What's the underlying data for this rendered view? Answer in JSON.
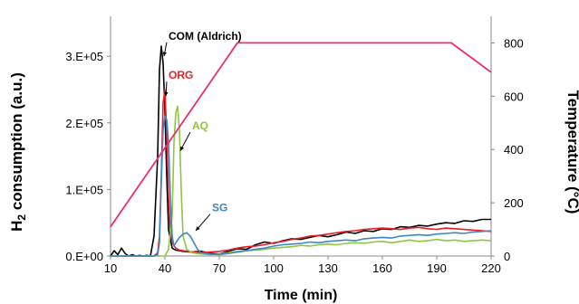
{
  "chart_data": {
    "type": "line",
    "xlabel": "Time (min)",
    "ylabel_main": "H",
    "ylabel_sub": "2",
    "ylabel_rest": " consumption (a.u.)",
    "y2label": "Temperature (°C)",
    "xlim": [
      10,
      220
    ],
    "ylim": [
      0,
      360000
    ],
    "y2lim": [
      0,
      900
    ],
    "x_ticks": [
      10,
      40,
      70,
      100,
      130,
      160,
      190,
      220
    ],
    "x_tick_labels": [
      "10",
      "40",
      "70",
      "100",
      "130",
      "160",
      "190",
      "220"
    ],
    "y_ticks": [
      0,
      100000,
      200000,
      300000
    ],
    "y_tick_labels": [
      "0.E+00",
      "1.E+05",
      "2.E+05",
      "3.E+05"
    ],
    "y2_ticks": [
      0,
      200,
      400,
      600,
      800
    ],
    "y2_tick_labels": [
      "0",
      "200",
      "400",
      "600",
      "800"
    ],
    "grid": false,
    "series": [
      {
        "name": "COM (Aldrich)",
        "axis": "left",
        "color": "#000000",
        "x": [
          10,
          12,
          14,
          16,
          18,
          20,
          22,
          24,
          26,
          28,
          30,
          32,
          34,
          36,
          37,
          38,
          39,
          40,
          41,
          42,
          44,
          46,
          48,
          50,
          55,
          60,
          65,
          70,
          75,
          80,
          85,
          90,
          95,
          100,
          105,
          110,
          115,
          120,
          125,
          130,
          135,
          140,
          145,
          150,
          155,
          160,
          165,
          170,
          175,
          180,
          185,
          190,
          195,
          200,
          205,
          210,
          215,
          220
        ],
        "y": [
          0,
          8000,
          2000,
          12000,
          4000,
          0,
          2000,
          0,
          1000,
          0,
          1000,
          0,
          30000,
          150000,
          280000,
          315000,
          290000,
          220000,
          120000,
          40000,
          12000,
          9000,
          8000,
          7000,
          6000,
          7000,
          4000,
          3000,
          7000,
          11000,
          10000,
          17000,
          21000,
          19000,
          23000,
          26000,
          25000,
          28000,
          31000,
          29000,
          32000,
          36000,
          34000,
          38000,
          37000,
          41000,
          40000,
          44000,
          43000,
          46000,
          45000,
          48000,
          50000,
          49000,
          53000,
          52000,
          55000,
          55000
        ]
      },
      {
        "name": "ORG",
        "axis": "left",
        "color": "#ee1c25",
        "x": [
          10,
          30,
          34,
          36,
          37,
          38,
          39,
          40,
          41,
          42,
          43,
          44,
          46,
          48,
          50,
          55,
          60,
          65,
          70,
          75,
          80,
          85,
          90,
          95,
          100,
          105,
          110,
          115,
          120,
          125,
          130,
          135,
          140,
          145,
          150,
          155,
          160,
          165,
          170,
          175,
          180,
          185,
          190,
          195,
          200,
          205,
          210,
          215,
          220
        ],
        "y": [
          0,
          0,
          0,
          5000,
          30000,
          120000,
          230000,
          250000,
          180000,
          90000,
          40000,
          20000,
          12000,
          9000,
          8000,
          6000,
          5000,
          6000,
          7000,
          9000,
          12000,
          14000,
          15000,
          17000,
          20000,
          22000,
          25000,
          27000,
          30000,
          31000,
          33000,
          35000,
          37000,
          38000,
          40000,
          41000,
          42000,
          41000,
          40000,
          42000,
          43000,
          41000,
          40000,
          42000,
          41000,
          40000,
          39000,
          38000,
          37000
        ]
      },
      {
        "name": "AQ",
        "axis": "left",
        "color": "#8dc63f",
        "x": [
          10,
          30,
          40,
          42,
          44,
          45,
          46,
          47,
          48,
          49,
          50,
          52,
          55,
          60,
          65,
          70,
          75,
          80,
          85,
          90,
          95,
          100,
          105,
          110,
          115,
          120,
          125,
          130,
          135,
          140,
          145,
          150,
          155,
          160,
          165,
          170,
          175,
          180,
          185,
          190,
          195,
          200,
          205,
          210,
          215,
          220
        ],
        "y": [
          0,
          0,
          0,
          10000,
          60000,
          170000,
          215000,
          225000,
          190000,
          100000,
          30000,
          10000,
          5000,
          3000,
          2000,
          3000,
          5000,
          7000,
          8000,
          9000,
          10000,
          12000,
          13000,
          14000,
          16000,
          15000,
          17000,
          18000,
          17000,
          19000,
          20000,
          19000,
          21000,
          22000,
          20000,
          22000,
          24000,
          22000,
          23000,
          25000,
          23000,
          24000,
          22000,
          23000,
          24000,
          23000
        ]
      },
      {
        "name": "SG",
        "axis": "left",
        "color": "#3a86c8",
        "x": [
          10,
          30,
          34,
          36,
          37,
          38,
          39,
          40,
          41,
          42,
          43,
          44,
          45,
          46,
          48,
          50,
          52,
          54,
          56,
          58,
          60,
          65,
          70,
          75,
          80,
          85,
          90,
          95,
          100,
          105,
          110,
          115,
          120,
          125,
          130,
          135,
          140,
          145,
          150,
          155,
          160,
          165,
          170,
          175,
          180,
          185,
          190,
          195,
          200,
          205,
          210,
          215,
          220
        ],
        "y": [
          0,
          0,
          0,
          2000,
          20000,
          110000,
          190000,
          210000,
          205000,
          170000,
          90000,
          30000,
          15000,
          20000,
          28000,
          33000,
          35000,
          30000,
          20000,
          10000,
          5000,
          3000,
          2000,
          4000,
          6000,
          8000,
          10000,
          12000,
          15000,
          17000,
          18000,
          19000,
          21000,
          20000,
          22000,
          23000,
          24000,
          23000,
          26000,
          27000,
          28000,
          27000,
          30000,
          31000,
          32000,
          31000,
          33000,
          34000,
          35000,
          34000,
          36000,
          37000,
          38000
        ]
      },
      {
        "name": "Temperature",
        "axis": "right",
        "color": "#ec2a7a",
        "x": [
          10,
          80,
          198,
          220
        ],
        "y": [
          110,
          800,
          800,
          690
        ]
      }
    ],
    "annotations": [
      {
        "text": "COM (Aldrich)",
        "color": "#000000",
        "x": 42,
        "y": 325000,
        "arrow_to_x": 39.5,
        "arrow_to_y": 300000
      },
      {
        "text": "ORG",
        "color": "#ee1c25",
        "x": 42,
        "y": 266000,
        "arrow_to_x": 40.5,
        "arrow_to_y": 240000
      },
      {
        "text": "AQ",
        "color": "#8dc63f",
        "x": 55,
        "y": 190000,
        "arrow_to_x": 48.5,
        "arrow_to_y": 158000
      },
      {
        "text": "SG",
        "color": "#3a86c8",
        "x": 66,
        "y": 67000,
        "arrow_to_x": 57,
        "arrow_to_y": 38000
      }
    ]
  }
}
